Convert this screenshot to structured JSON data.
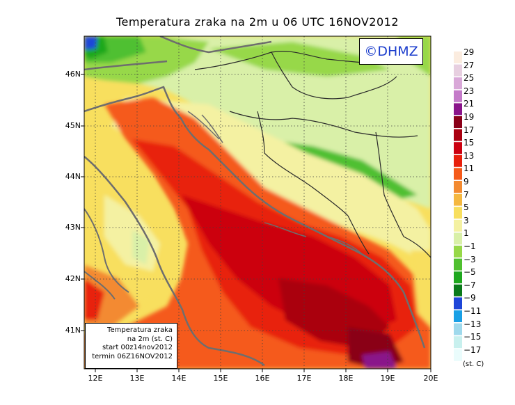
{
  "title": "Temperatura zraka na 2m u 06 UTC 16NOV2012",
  "copyright": "©DHMZ",
  "infobox": [
    "Temperatura zraka",
    "na 2m (st. C)",
    "start 00z14nov2012",
    "termin 06Z16NOV2012"
  ],
  "lat_labels": [
    "46N",
    "45N",
    "44N",
    "43N",
    "42N",
    "41N"
  ],
  "lon_labels": [
    "12E",
    "13E",
    "14E",
    "15E",
    "16E",
    "17E",
    "18E",
    "19E",
    "20E"
  ],
  "colorbar": {
    "labels": [
      "29",
      "27",
      "25",
      "23",
      "21",
      "19",
      "17",
      "15",
      "13",
      "11",
      "9",
      "7",
      "5",
      "3",
      "1",
      "−1",
      "−3",
      "−5",
      "−7",
      "−9",
      "−11",
      "−13",
      "−15",
      "−17"
    ],
    "units": "(st. C)",
    "colors": [
      "#fbecdf",
      "#e7cfe0",
      "#d9a8d8",
      "#c47bc9",
      "#8a148a",
      "#8a0018",
      "#aa0010",
      "#cc0010",
      "#e8200c",
      "#f55a1a",
      "#f38a30",
      "#f5b840",
      "#f8df5e",
      "#f4f1a2",
      "#d9f0a8",
      "#97d848",
      "#50c030",
      "#1ea81e",
      "#0a7a1a",
      "#1e46d8",
      "#19a0e6",
      "#9fd9ec",
      "#c8f0ee",
      "#eafcfc"
    ]
  },
  "colors": {
    "coast": "#6e6e6e",
    "border": "#2a2a2a",
    "grid": "#404040",
    "copyright_text": "#1a3ccc"
  }
}
